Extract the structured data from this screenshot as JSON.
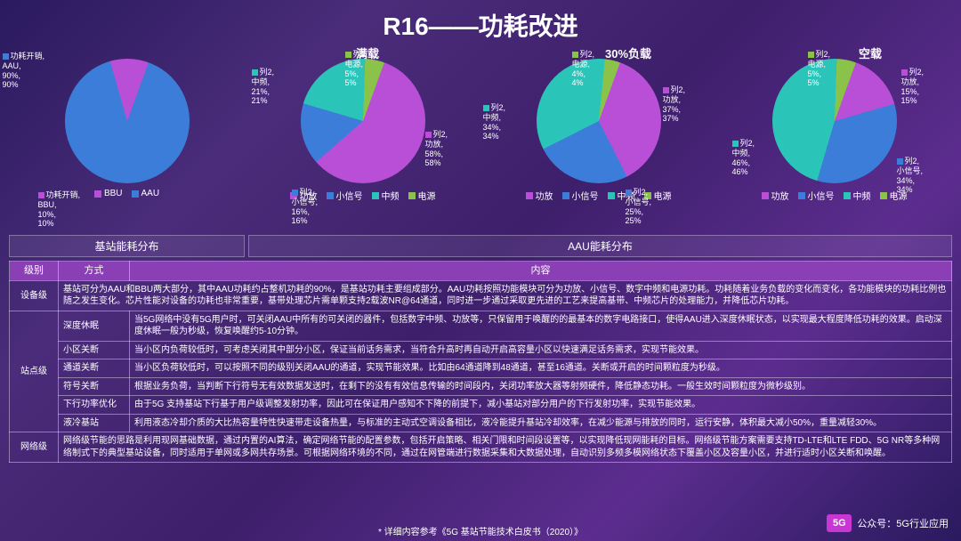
{
  "title": "R16——功耗改进",
  "colors": {
    "purple": "#b94fd6",
    "blue": "#3b7dd8",
    "teal": "#2bc4b8",
    "green": "#8bc34a",
    "border": "rgba(255,255,255,0.4)"
  },
  "charts": [
    {
      "title": "",
      "type": "pie",
      "segments": [
        {
          "label": "功耗开销, AAU, 90%, 90%",
          "value": 90,
          "color": "#3b7dd8"
        },
        {
          "label": "功耗开销, BBU, 10%, 10%",
          "value": 10,
          "color": "#b94fd6"
        }
      ],
      "legend": [
        "BBU",
        "AAU"
      ],
      "legend_colors": [
        "#b94fd6",
        "#3b7dd8"
      ]
    },
    {
      "title": "满载",
      "type": "pie",
      "segments": [
        {
          "label": "列2, 功放, 58%, 58%",
          "value": 58,
          "color": "#b94fd6"
        },
        {
          "label": "列2, 小信号, 16%, 16%",
          "value": 16,
          "color": "#3b7dd8"
        },
        {
          "label": "列2, 中频, 21%, 21%",
          "value": 21,
          "color": "#2bc4b8"
        },
        {
          "label": "列2, 电源, 5%, 5%",
          "value": 5,
          "color": "#8bc34a"
        }
      ],
      "legend": [
        "功放",
        "小信号",
        "中频",
        "电源"
      ],
      "legend_colors": [
        "#b94fd6",
        "#3b7dd8",
        "#2bc4b8",
        "#8bc34a"
      ]
    },
    {
      "title": "30%负载",
      "type": "pie",
      "segments": [
        {
          "label": "列2, 功放, 37%, 37%",
          "value": 37,
          "color": "#b94fd6"
        },
        {
          "label": "列2, 小信号, 25%, 25%",
          "value": 25,
          "color": "#3b7dd8"
        },
        {
          "label": "列2, 中频, 34%, 34%",
          "value": 34,
          "color": "#2bc4b8"
        },
        {
          "label": "列2, 电源, 4%, 4%",
          "value": 4,
          "color": "#8bc34a"
        }
      ],
      "legend": [
        "功放",
        "小信号",
        "中频",
        "电源"
      ],
      "legend_colors": [
        "#b94fd6",
        "#3b7dd8",
        "#2bc4b8",
        "#8bc34a"
      ]
    },
    {
      "title": "空载",
      "type": "pie",
      "segments": [
        {
          "label": "列2, 功放, 15%, 15%",
          "value": 15,
          "color": "#b94fd6"
        },
        {
          "label": "列2, 小信号, 34%, 34%",
          "value": 34,
          "color": "#3b7dd8"
        },
        {
          "label": "列2, 中频, 46%, 46%",
          "value": 46,
          "color": "#2bc4b8"
        },
        {
          "label": "列2, 电源, 5%, 5%",
          "value": 5,
          "color": "#8bc34a"
        }
      ],
      "legend": [
        "功放",
        "小信号",
        "中频",
        "电源"
      ],
      "legend_colors": [
        "#b94fd6",
        "#3b7dd8",
        "#2bc4b8",
        "#8bc34a"
      ]
    }
  ],
  "section_headers": [
    "基站能耗分布",
    "AAU能耗分布"
  ],
  "table": {
    "headers": [
      "级别",
      "方式",
      "内容"
    ],
    "rows": [
      {
        "c1": "设备级",
        "c2": "",
        "c3": "基站可分为AAU和BBU两大部分，其中AAU功耗约占整机功耗的90%，是基站功耗主要组成部分。AAU功耗按照功能模块可分为功放、小信号、数字中频和电源功耗。功耗随着业务负载的变化而变化，各功能模块的功耗比例也随之发生变化。芯片性能对设备的功耗也非常重要，基带处理芯片需单颗支持2载波NR@64通道，同时进一步通过采取更先进的工艺来提高基带、中频芯片的处理能力，并降低芯片功耗。",
        "span": 2
      },
      {
        "c1": "站点级",
        "c2": "深度休眠",
        "c3": "当5G网络中没有5G用户时，可关闭AAU中所有的可关闭的器件，包括数字中频、功放等，只保留用于唤醒的的最基本的数字电路接口，使得AAU进入深度休眠状态，以实现最大程度降低功耗的效果。启动深度休眠一般为秒级，恢复唤醒约5-10分钟。",
        "rowspan": 6
      },
      {
        "c1": "",
        "c2": "小区关断",
        "c3": "当小区内负荷较低时，可考虑关闭其中部分小区，保证当前话务需求，当符合升高时再自动开启高容量小区以快速满足话务需求，实现节能效果。"
      },
      {
        "c1": "",
        "c2": "通道关断",
        "c3": "当小区负荷较低时，可以按照不同的级别关闭AAU的通道，实现节能效果。比如由64通道降到48通道，甚至16通道。关断或开启的时间颗粒度为秒级。"
      },
      {
        "c1": "",
        "c2": "符号关断",
        "c3": "根据业务负荷，当判断下行符号无有效数据发送时，在剩下的没有有效信息传输的时间段内，关闭功率放大器等射频硬件，降低静态功耗。一般生效时间颗粒度为微秒级别。"
      },
      {
        "c1": "",
        "c2": "下行功率优化",
        "c3": "由于5G 支持基站下行基于用户级调整发射功率，因此可在保证用户感知不下降的前提下，减小基站对部分用户的下行发射功率，实现节能效果。"
      },
      {
        "c1": "",
        "c2": "液冷基站",
        "c3": "利用液态冷却介质的大比热容量特性快速带走设备热量，与标准的主动式空调设备相比，液冷能提升基站冷却效率，在减少能源与排放的同时，运行安静，体积最大减小50%，重量减轻30%。"
      },
      {
        "c1": "网络级",
        "c2": "",
        "c3": "网络级节能的思路是利用现网基础数据，通过内置的AI算法，确定网络节能的配置参数，包括开启策略、相关门限和时间段设置等，以实现降低现网能耗的目标。网络级节能方案需要支持TD-LTE和LTE FDD、5G NR等多种网络制式下的典型基站设备，同时适用于单网或多网共存场景。可根据网络环境的不同，通过在网管端进行数据采集和大数据处理，自动识别多频多模网络状态下覆盖小区及容量小区，并进行适时小区关断和唤醒。",
        "span": 2
      }
    ]
  },
  "footer": "* 详细内容参考《5G 基站节能技术白皮书（2020）》",
  "brand": {
    "logo": "5G",
    "text": "公众号：5G行业应用"
  }
}
